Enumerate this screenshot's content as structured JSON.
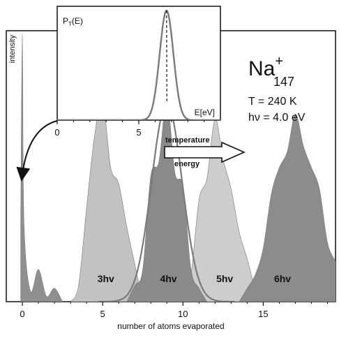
{
  "chart_data": [
    {
      "type": "area",
      "xlabel": "number of atoms evaporated",
      "ylabel": "intensity",
      "xlim": [
        -1.0,
        19.5
      ],
      "xticks": [
        0,
        5,
        10,
        15
      ],
      "ylim": [
        0,
        1
      ],
      "grid": false,
      "colors": {
        "3hv": "#c2c2c2",
        "4hv": "#8a8a8a",
        "5hv": "#cdcdcd",
        "6hv": "#8c8c8c",
        "first": "#8f8f8f",
        "pt_curve": "#7a7a7a"
      },
      "series": [
        {
          "name": "",
          "x": [
            -0.1,
            0.0,
            0.1,
            0.5,
            1.0,
            1.5,
            2.0,
            2.5
          ],
          "values": [
            0.3,
            1.0,
            0.3,
            0.04,
            0.12,
            0.02,
            0.05,
            0.0
          ]
        },
        {
          "name": "3hv",
          "x": [
            3,
            3.5,
            4,
            4.5,
            5,
            5.5,
            6,
            6.5,
            7,
            7.5
          ],
          "values": [
            0.0,
            0.06,
            0.35,
            0.62,
            0.75,
            0.5,
            0.44,
            0.28,
            0.14,
            0.0
          ]
        },
        {
          "name": "4hv",
          "x": [
            6.5,
            7,
            7.5,
            8,
            8.5,
            9,
            9.5,
            10,
            10.5,
            11,
            11.5
          ],
          "values": [
            0.0,
            0.06,
            0.12,
            0.47,
            0.52,
            0.75,
            0.48,
            0.43,
            0.12,
            0.05,
            0.0
          ]
        },
        {
          "name": "5hv",
          "x": [
            10,
            10.5,
            11,
            11.5,
            12,
            12.5,
            13,
            13.5,
            14,
            14.5,
            15
          ],
          "values": [
            0.0,
            0.1,
            0.38,
            0.46,
            0.68,
            0.53,
            0.42,
            0.26,
            0.16,
            0.05,
            0.0
          ]
        },
        {
          "name": "6hv",
          "x": [
            13.5,
            14,
            14.5,
            15,
            15.5,
            16,
            16.5,
            17,
            17.5,
            18,
            18.5,
            19,
            19.5
          ],
          "values": [
            0.0,
            0.05,
            0.1,
            0.2,
            0.4,
            0.5,
            0.56,
            0.7,
            0.58,
            0.5,
            0.42,
            0.22,
            0.15
          ]
        }
      ],
      "pt_curve": {
        "center": 9.0,
        "sigma": 0.95,
        "peak": 0.74
      },
      "band_labels": [
        {
          "label": "3hv",
          "x": 5.2
        },
        {
          "label": "4hv",
          "x": 9.1
        },
        {
          "label": "5hv",
          "x": 12.6
        },
        {
          "label": "6hv",
          "x": 16.2
        }
      ]
    },
    {
      "type": "line",
      "title": "",
      "xlabel": "E[eV]",
      "ylabel": "P_T(E)",
      "xlim": [
        0,
        10
      ],
      "xticks": [
        0,
        5
      ],
      "series": [
        {
          "name": "",
          "center": 6.7,
          "sigma": 0.42,
          "peak": 1.0
        }
      ]
    }
  ],
  "annotations": {
    "ion": "Na",
    "ion_superscript": "+",
    "ion_subscript": "147",
    "temperature": "T = 240 K",
    "photon": "hν = 4.0 eV",
    "arrow_label_top": "temperature",
    "arrow_label_bottom": "energy",
    "pt_label_main": "P",
    "pt_label_sub": "T",
    "pt_label_rest": "(E)"
  }
}
